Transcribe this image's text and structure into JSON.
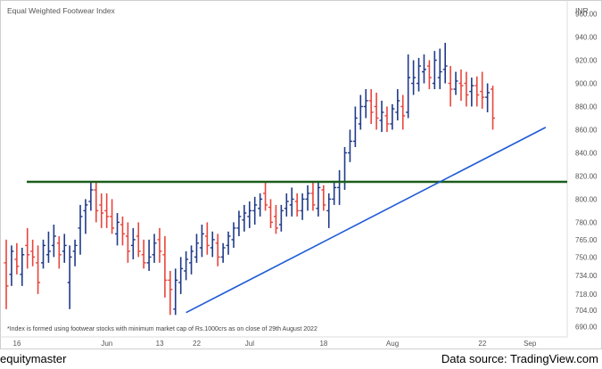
{
  "chart_data": {
    "type": "ohlc",
    "title": "Equal Weighted Footwear Index",
    "currency_label": "INR",
    "y_ticks": [
      690,
      704,
      718,
      734,
      750,
      765,
      780,
      800,
      820,
      840,
      860,
      880,
      900,
      920,
      940,
      960
    ],
    "ylim": [
      681,
      972
    ],
    "x_tick_labels": [
      {
        "label": "16",
        "bar": 0
      },
      {
        "label": "Jun",
        "bar": 17
      },
      {
        "label": "13",
        "bar": 27
      },
      {
        "label": "22",
        "bar": 34
      },
      {
        "label": "Jul",
        "bar": 44
      },
      {
        "label": "18",
        "bar": 58
      },
      {
        "label": "Aug",
        "bar": 71
      },
      {
        "label": "22",
        "bar": 88
      },
      {
        "label": "Sep",
        "bar": 97
      }
    ],
    "bars": [
      {
        "o": 745,
        "h": 765,
        "l": 705,
        "c": 725
      },
      {
        "o": 735,
        "h": 760,
        "l": 725,
        "c": 755
      },
      {
        "o": 748,
        "h": 762,
        "l": 735,
        "c": 742
      },
      {
        "o": 735,
        "h": 758,
        "l": 725,
        "c": 752
      },
      {
        "o": 760,
        "h": 775,
        "l": 740,
        "c": 752
      },
      {
        "o": 755,
        "h": 765,
        "l": 742,
        "c": 750
      },
      {
        "o": 745,
        "h": 760,
        "l": 718,
        "c": 728
      },
      {
        "o": 745,
        "h": 765,
        "l": 740,
        "c": 760
      },
      {
        "o": 752,
        "h": 772,
        "l": 745,
        "c": 755
      },
      {
        "o": 760,
        "h": 778,
        "l": 750,
        "c": 768
      },
      {
        "o": 762,
        "h": 768,
        "l": 740,
        "c": 752
      },
      {
        "o": 755,
        "h": 770,
        "l": 745,
        "c": 760
      },
      {
        "o": 728,
        "h": 760,
        "l": 705,
        "c": 750
      },
      {
        "o": 755,
        "h": 765,
        "l": 742,
        "c": 760
      },
      {
        "o": 775,
        "h": 795,
        "l": 752,
        "c": 785
      },
      {
        "o": 790,
        "h": 800,
        "l": 770,
        "c": 795
      },
      {
        "o": 798,
        "h": 815,
        "l": 790,
        "c": 808
      },
      {
        "o": 808,
        "h": 815,
        "l": 780,
        "c": 790
      },
      {
        "o": 795,
        "h": 805,
        "l": 775,
        "c": 788
      },
      {
        "o": 790,
        "h": 805,
        "l": 775,
        "c": 785
      },
      {
        "o": 785,
        "h": 800,
        "l": 770,
        "c": 775
      },
      {
        "o": 770,
        "h": 788,
        "l": 760,
        "c": 780
      },
      {
        "o": 778,
        "h": 785,
        "l": 760,
        "c": 770
      },
      {
        "o": 768,
        "h": 780,
        "l": 745,
        "c": 755
      },
      {
        "o": 760,
        "h": 775,
        "l": 748,
        "c": 765
      },
      {
        "o": 768,
        "h": 780,
        "l": 750,
        "c": 755
      },
      {
        "o": 752,
        "h": 765,
        "l": 740,
        "c": 745
      },
      {
        "o": 745,
        "h": 765,
        "l": 738,
        "c": 750
      },
      {
        "o": 752,
        "h": 770,
        "l": 745,
        "c": 762
      },
      {
        "o": 765,
        "h": 775,
        "l": 745,
        "c": 755
      },
      {
        "o": 752,
        "h": 768,
        "l": 715,
        "c": 730
      },
      {
        "o": 730,
        "h": 738,
        "l": 700,
        "c": 722
      },
      {
        "o": 705,
        "h": 740,
        "l": 700,
        "c": 730
      },
      {
        "o": 728,
        "h": 750,
        "l": 718,
        "c": 740
      },
      {
        "o": 738,
        "h": 755,
        "l": 730,
        "c": 748
      },
      {
        "o": 745,
        "h": 760,
        "l": 735,
        "c": 755
      },
      {
        "o": 750,
        "h": 770,
        "l": 745,
        "c": 762
      },
      {
        "o": 758,
        "h": 778,
        "l": 750,
        "c": 770
      },
      {
        "o": 768,
        "h": 780,
        "l": 752,
        "c": 760
      },
      {
        "o": 758,
        "h": 772,
        "l": 750,
        "c": 765
      },
      {
        "o": 762,
        "h": 770,
        "l": 742,
        "c": 750
      },
      {
        "o": 750,
        "h": 762,
        "l": 745,
        "c": 758
      },
      {
        "o": 760,
        "h": 772,
        "l": 752,
        "c": 768
      },
      {
        "o": 765,
        "h": 780,
        "l": 758,
        "c": 775
      },
      {
        "o": 775,
        "h": 790,
        "l": 768,
        "c": 785
      },
      {
        "o": 782,
        "h": 795,
        "l": 772,
        "c": 788
      },
      {
        "o": 785,
        "h": 798,
        "l": 775,
        "c": 790
      },
      {
        "o": 790,
        "h": 802,
        "l": 778,
        "c": 795
      },
      {
        "o": 792,
        "h": 805,
        "l": 785,
        "c": 800
      },
      {
        "o": 805,
        "h": 815,
        "l": 790,
        "c": 795
      },
      {
        "o": 793,
        "h": 800,
        "l": 775,
        "c": 780
      },
      {
        "o": 785,
        "h": 795,
        "l": 770,
        "c": 775
      },
      {
        "o": 778,
        "h": 795,
        "l": 772,
        "c": 790
      },
      {
        "o": 792,
        "h": 805,
        "l": 785,
        "c": 798
      },
      {
        "o": 795,
        "h": 810,
        "l": 785,
        "c": 800
      },
      {
        "o": 798,
        "h": 805,
        "l": 785,
        "c": 790
      },
      {
        "o": 790,
        "h": 805,
        "l": 782,
        "c": 800
      },
      {
        "o": 800,
        "h": 812,
        "l": 790,
        "c": 805
      },
      {
        "o": 805,
        "h": 815,
        "l": 790,
        "c": 795
      },
      {
        "o": 792,
        "h": 815,
        "l": 785,
        "c": 810
      },
      {
        "o": 808,
        "h": 812,
        "l": 790,
        "c": 795
      },
      {
        "o": 790,
        "h": 805,
        "l": 775,
        "c": 800
      },
      {
        "o": 800,
        "h": 815,
        "l": 795,
        "c": 810
      },
      {
        "o": 810,
        "h": 825,
        "l": 795,
        "c": 815
      },
      {
        "o": 815,
        "h": 845,
        "l": 808,
        "c": 840
      },
      {
        "o": 840,
        "h": 860,
        "l": 832,
        "c": 850
      },
      {
        "o": 850,
        "h": 880,
        "l": 845,
        "c": 870
      },
      {
        "o": 865,
        "h": 890,
        "l": 860,
        "c": 880
      },
      {
        "o": 880,
        "h": 895,
        "l": 870,
        "c": 885
      },
      {
        "o": 885,
        "h": 895,
        "l": 865,
        "c": 875
      },
      {
        "o": 880,
        "h": 892,
        "l": 860,
        "c": 870
      },
      {
        "o": 868,
        "h": 885,
        "l": 858,
        "c": 875
      },
      {
        "o": 872,
        "h": 880,
        "l": 858,
        "c": 865
      },
      {
        "o": 865,
        "h": 882,
        "l": 860,
        "c": 878
      },
      {
        "o": 875,
        "h": 895,
        "l": 868,
        "c": 885
      },
      {
        "o": 880,
        "h": 890,
        "l": 860,
        "c": 872
      },
      {
        "o": 875,
        "h": 925,
        "l": 870,
        "c": 905
      },
      {
        "o": 900,
        "h": 920,
        "l": 890,
        "c": 905
      },
      {
        "o": 900,
        "h": 922,
        "l": 893,
        "c": 915
      },
      {
        "o": 910,
        "h": 925,
        "l": 900,
        "c": 912
      },
      {
        "o": 915,
        "h": 920,
        "l": 895,
        "c": 905
      },
      {
        "o": 900,
        "h": 928,
        "l": 895,
        "c": 920
      },
      {
        "o": 905,
        "h": 930,
        "l": 895,
        "c": 910
      },
      {
        "o": 912,
        "h": 935,
        "l": 900,
        "c": 915
      },
      {
        "o": 900,
        "h": 915,
        "l": 880,
        "c": 895
      },
      {
        "o": 895,
        "h": 910,
        "l": 890,
        "c": 902
      },
      {
        "o": 900,
        "h": 912,
        "l": 885,
        "c": 898
      },
      {
        "o": 900,
        "h": 910,
        "l": 880,
        "c": 890
      },
      {
        "o": 893,
        "h": 905,
        "l": 880,
        "c": 898
      },
      {
        "o": 898,
        "h": 906,
        "l": 880,
        "c": 890
      },
      {
        "o": 893,
        "h": 910,
        "l": 878,
        "c": 888
      },
      {
        "o": 888,
        "h": 900,
        "l": 875,
        "c": 892
      },
      {
        "o": 895,
        "h": 898,
        "l": 860,
        "c": 870
      }
    ],
    "bar_slot_start": 5,
    "bar_slot_step": 5.93,
    "colors": {
      "up": "#1f3a8a",
      "down": "#e8453c",
      "support": "#1a5e1a",
      "trend": "#1f5bd6"
    },
    "support_level": 815,
    "trendline": {
      "from_bar": 34,
      "from_value": 702,
      "to_bar": 102,
      "to_value": 862
    },
    "footnote": "*Index is formed using footwear stocks with minimum market cap of Rs.1000crs as on close of 29th August 2022"
  },
  "footer": {
    "brand": "equitymaster",
    "source": "Data source: TradingView.com"
  }
}
